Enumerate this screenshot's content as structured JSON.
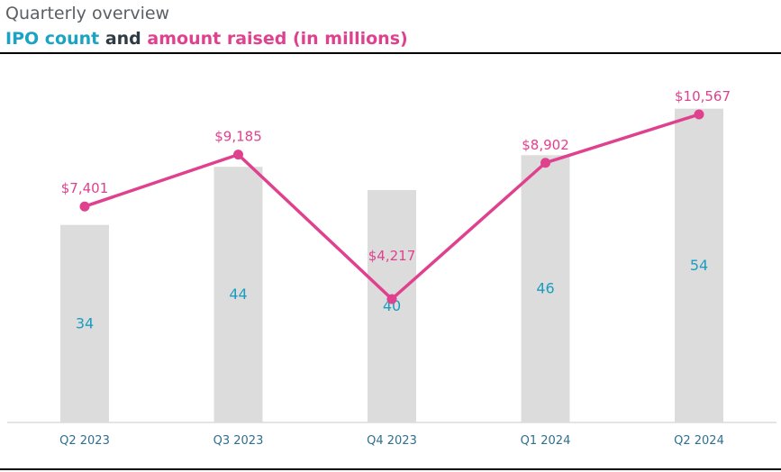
{
  "header": {
    "kicker": "Quarterly overview",
    "title_part1": "IPO count",
    "title_part2": " and ",
    "title_part3": "amount raised (in millions)"
  },
  "colors": {
    "count": "#1aa3c3",
    "amount": "#e0418f",
    "bar": "#dcdcdc"
  },
  "chart_data": {
    "type": "bar",
    "categories": [
      "Q2 2023",
      "Q3 2023",
      "Q4 2023",
      "Q1 2024",
      "Q2 2024"
    ],
    "series": [
      {
        "name": "IPO count",
        "type": "bar",
        "values": [
          34,
          44,
          40,
          46,
          54
        ],
        "labels": [
          "34",
          "44",
          "40",
          "46",
          "54"
        ]
      },
      {
        "name": "amount raised (in millions)",
        "type": "line",
        "values": [
          7401,
          9185,
          4217,
          8902,
          10567
        ],
        "labels": [
          "$7,401",
          "$9,185",
          "$4,217",
          "$8,902",
          "$10,567"
        ]
      }
    ],
    "grid": false,
    "legend": "none"
  }
}
